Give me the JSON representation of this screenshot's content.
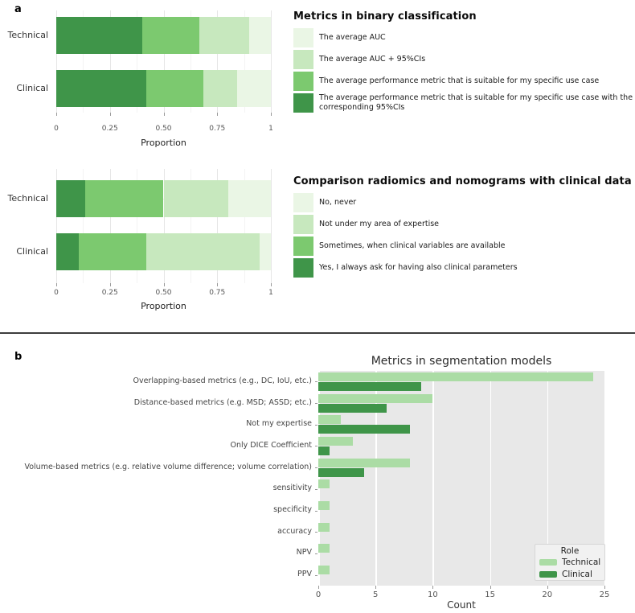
{
  "figure": {
    "panel_a_label": "a",
    "panel_b_label": "b"
  },
  "colors": {
    "green_lightest": "#eaf6e5",
    "green_light": "#c7e8be",
    "green_medium": "#7cc96f",
    "green_dark": "#3f9549",
    "technical": "#abdca5",
    "clinical": "#3f9549",
    "plot_background": "#e8e8e8",
    "divider": "#3d3d3d"
  },
  "chart_data": [
    {
      "type": "bar",
      "subtype": "stacked_horizontal",
      "title": "Metrics in binary classification",
      "categories": [
        "Technical",
        "Clinical"
      ],
      "xlabel": "Proportion",
      "xlim": [
        0,
        1
      ],
      "xtick_values": [
        0,
        0.25,
        0.5,
        0.75,
        1
      ],
      "xtick_labels": [
        "0",
        "0.25",
        "0.50",
        "0.75",
        "1"
      ],
      "grid": true,
      "legend_position": "right",
      "segments": [
        {
          "label": "The average performance metric that is suitable for my specific use case with the corresponding 95%CIs",
          "color": "#3f9549",
          "values": [
            0.4,
            0.421
          ]
        },
        {
          "label": "The average performance metric that is suitable for my specific use case",
          "color": "#7cc96f",
          "values": [
            0.267,
            0.263
          ]
        },
        {
          "label": "The average AUC + 95%CIs",
          "color": "#c7e8be",
          "values": [
            0.233,
            0.158
          ]
        },
        {
          "label": "The average AUC",
          "color": "#eaf6e5",
          "values": [
            0.1,
            0.158
          ]
        }
      ]
    },
    {
      "type": "bar",
      "subtype": "stacked_horizontal",
      "title": "Comparison radiomics and nomograms with clinical data",
      "categories": [
        "Technical",
        "Clinical"
      ],
      "xlabel": "Proportion",
      "xlim": [
        0,
        1
      ],
      "xtick_values": [
        0,
        0.25,
        0.5,
        0.75,
        1
      ],
      "xtick_labels": [
        "0",
        "0.25",
        "0.50",
        "0.75",
        "1"
      ],
      "grid": true,
      "legend_position": "right",
      "segments": [
        {
          "label": "Yes, I always ask for having also clinical parameters",
          "color": "#3f9549",
          "values": [
            0.133,
            0.105
          ]
        },
        {
          "label": "Sometimes, when clinical variables are available",
          "color": "#7cc96f",
          "values": [
            0.367,
            0.316
          ]
        },
        {
          "label": "Not under my area of expertise",
          "color": "#c7e8be",
          "values": [
            0.3,
            0.526
          ]
        },
        {
          "label": "No, never",
          "color": "#eaf6e5",
          "values": [
            0.2,
            0.053
          ]
        }
      ]
    },
    {
      "type": "bar",
      "subtype": "grouped_horizontal",
      "title": "Metrics in segmentation models",
      "xlabel": "Count",
      "xlim": [
        0,
        25
      ],
      "xtick_values": [
        0,
        5,
        10,
        15,
        20,
        25
      ],
      "xtick_labels": [
        "0",
        "5",
        "10",
        "15",
        "20",
        "25"
      ],
      "grid": true,
      "plot_bg": "#e8e8e8",
      "legend_title": "Role",
      "legend_position": "lower right",
      "categories": [
        "Overlapping-based metrics (e.g., DC, IoU, etc.)",
        "Distance-based metrics (e.g. MSD; ASSD; etc.)",
        "Not my expertise",
        "Only DICE Coefficient",
        "Volume-based metrics (e.g. relative volume difference; volume correlation)",
        "sensitivity",
        "specificity",
        "accuracy",
        "NPV",
        "PPV"
      ],
      "series": [
        {
          "name": "Technical",
          "color": "#abdca5",
          "values": [
            24,
            10,
            2,
            3,
            8,
            1,
            1,
            1,
            1,
            1
          ]
        },
        {
          "name": "Clinical",
          "color": "#3f9549",
          "values": [
            9,
            6,
            8,
            1,
            4,
            0,
            0,
            0,
            0,
            0
          ]
        }
      ]
    }
  ]
}
